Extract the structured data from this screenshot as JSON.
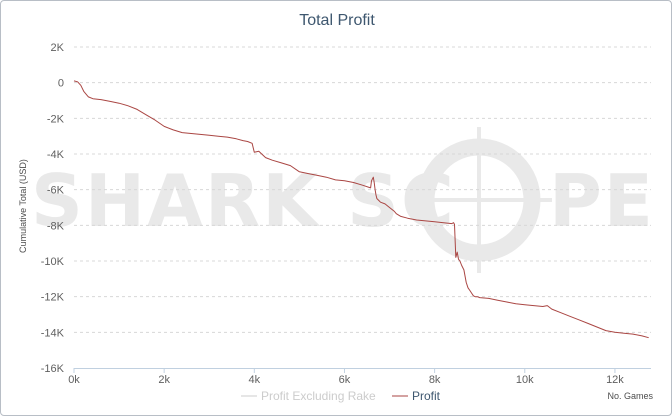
{
  "chart_data": {
    "type": "line",
    "title": "Total Profit",
    "xlabel": "No. Games",
    "ylabel": "Cumulative Total (USD)",
    "xlim": [
      0,
      12800
    ],
    "ylim": [
      -16000,
      2000
    ],
    "x_ticks": [
      0,
      2000,
      4000,
      6000,
      8000,
      10000,
      12000
    ],
    "x_tick_labels": [
      "0k",
      "2k",
      "4k",
      "6k",
      "8k",
      "10k",
      "12k"
    ],
    "y_ticks": [
      2000,
      0,
      -2000,
      -4000,
      -6000,
      -8000,
      -10000,
      -12000,
      -14000,
      -16000
    ],
    "y_tick_labels": [
      "2K",
      "0",
      "-2K",
      "-4K",
      "-6K",
      "-8K",
      "-10K",
      "-12K",
      "-14K",
      "-16K"
    ],
    "grid": true,
    "legend_position": "bottom-center",
    "series": [
      {
        "name": "Profit Excluding Rake",
        "color": "#cccccc",
        "visible": false,
        "x": [],
        "y": []
      },
      {
        "name": "Profit",
        "color": "#aa4643",
        "visible": true,
        "x": [
          0,
          80,
          150,
          220,
          320,
          420,
          600,
          800,
          1000,
          1200,
          1400,
          1600,
          1800,
          2000,
          2200,
          2400,
          2600,
          2800,
          3000,
          3200,
          3400,
          3600,
          3750,
          3850,
          3950,
          4000,
          4100,
          4250,
          4400,
          4600,
          4800,
          5000,
          5200,
          5400,
          5600,
          5800,
          6000,
          6200,
          6400,
          6580,
          6600,
          6640,
          6660,
          6680,
          6700,
          6720,
          6760,
          6800,
          6900,
          7000,
          7100,
          7150,
          7250,
          7400,
          7600,
          7800,
          8000,
          8200,
          8380,
          8420,
          8440,
          8470,
          8500,
          8530,
          8560,
          8600,
          8650,
          8700,
          8740,
          8780,
          8820,
          8860,
          8900,
          8950,
          9000,
          9200,
          9400,
          9600,
          9800,
          10000,
          10200,
          10400,
          10500,
          10600,
          10800,
          11000,
          11200,
          11400,
          11600,
          11800,
          12000,
          12200,
          12400,
          12600,
          12750
        ],
        "y": [
          100,
          50,
          -150,
          -500,
          -800,
          -900,
          -950,
          -1050,
          -1150,
          -1300,
          -1500,
          -1800,
          -2100,
          -2450,
          -2650,
          -2800,
          -2850,
          -2900,
          -2950,
          -3000,
          -3050,
          -3150,
          -3250,
          -3300,
          -3400,
          -3900,
          -3850,
          -4200,
          -4350,
          -4500,
          -4650,
          -5000,
          -5100,
          -5200,
          -5300,
          -5450,
          -5500,
          -5600,
          -5750,
          -5900,
          -5500,
          -5300,
          -5600,
          -6000,
          -6300,
          -6500,
          -6600,
          -6700,
          -6800,
          -7000,
          -7200,
          -7350,
          -7500,
          -7600,
          -7700,
          -7750,
          -7800,
          -7850,
          -7900,
          -7850,
          -7950,
          -9800,
          -9500,
          -9900,
          -10000,
          -10250,
          -10500,
          -11200,
          -11500,
          -11650,
          -11800,
          -11950,
          -12000,
          -12000,
          -12050,
          -12100,
          -12200,
          -12300,
          -12400,
          -12450,
          -12500,
          -12550,
          -12500,
          -12700,
          -12900,
          -13100,
          -13300,
          -13500,
          -13700,
          -13900,
          -14000,
          -14050,
          -14100,
          -14200,
          -14300
        ]
      }
    ]
  },
  "watermark": "SHARK SCOPE"
}
